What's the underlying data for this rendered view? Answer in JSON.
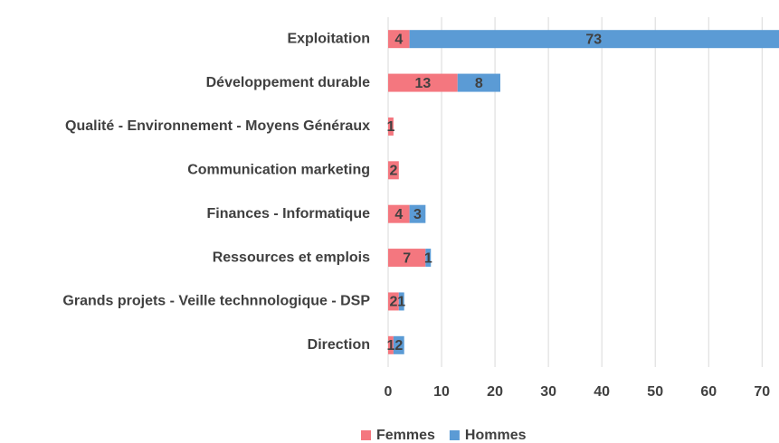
{
  "chart_data": {
    "type": "stacked-barh",
    "categories": [
      "Exploitation",
      "Développement durable",
      "Qualité - Environnement - Moyens Généraux",
      "Communication marketing",
      "Finances - Informatique",
      "Ressources et emplois",
      "Grands projets - Veille technnologique - DSP",
      "Direction"
    ],
    "series": [
      {
        "name": "Femmes",
        "color": "#f4777f",
        "values": [
          4,
          13,
          1,
          2,
          4,
          7,
          2,
          1
        ]
      },
      {
        "name": "Hommes",
        "color": "#5b9bd5",
        "values": [
          73,
          8,
          null,
          null,
          3,
          1,
          1,
          2
        ]
      }
    ],
    "xlim": [
      0,
      73
    ],
    "xticks": [
      0,
      10,
      20,
      30,
      40,
      50,
      60,
      70
    ],
    "grid": true,
    "legend": "bottom"
  }
}
